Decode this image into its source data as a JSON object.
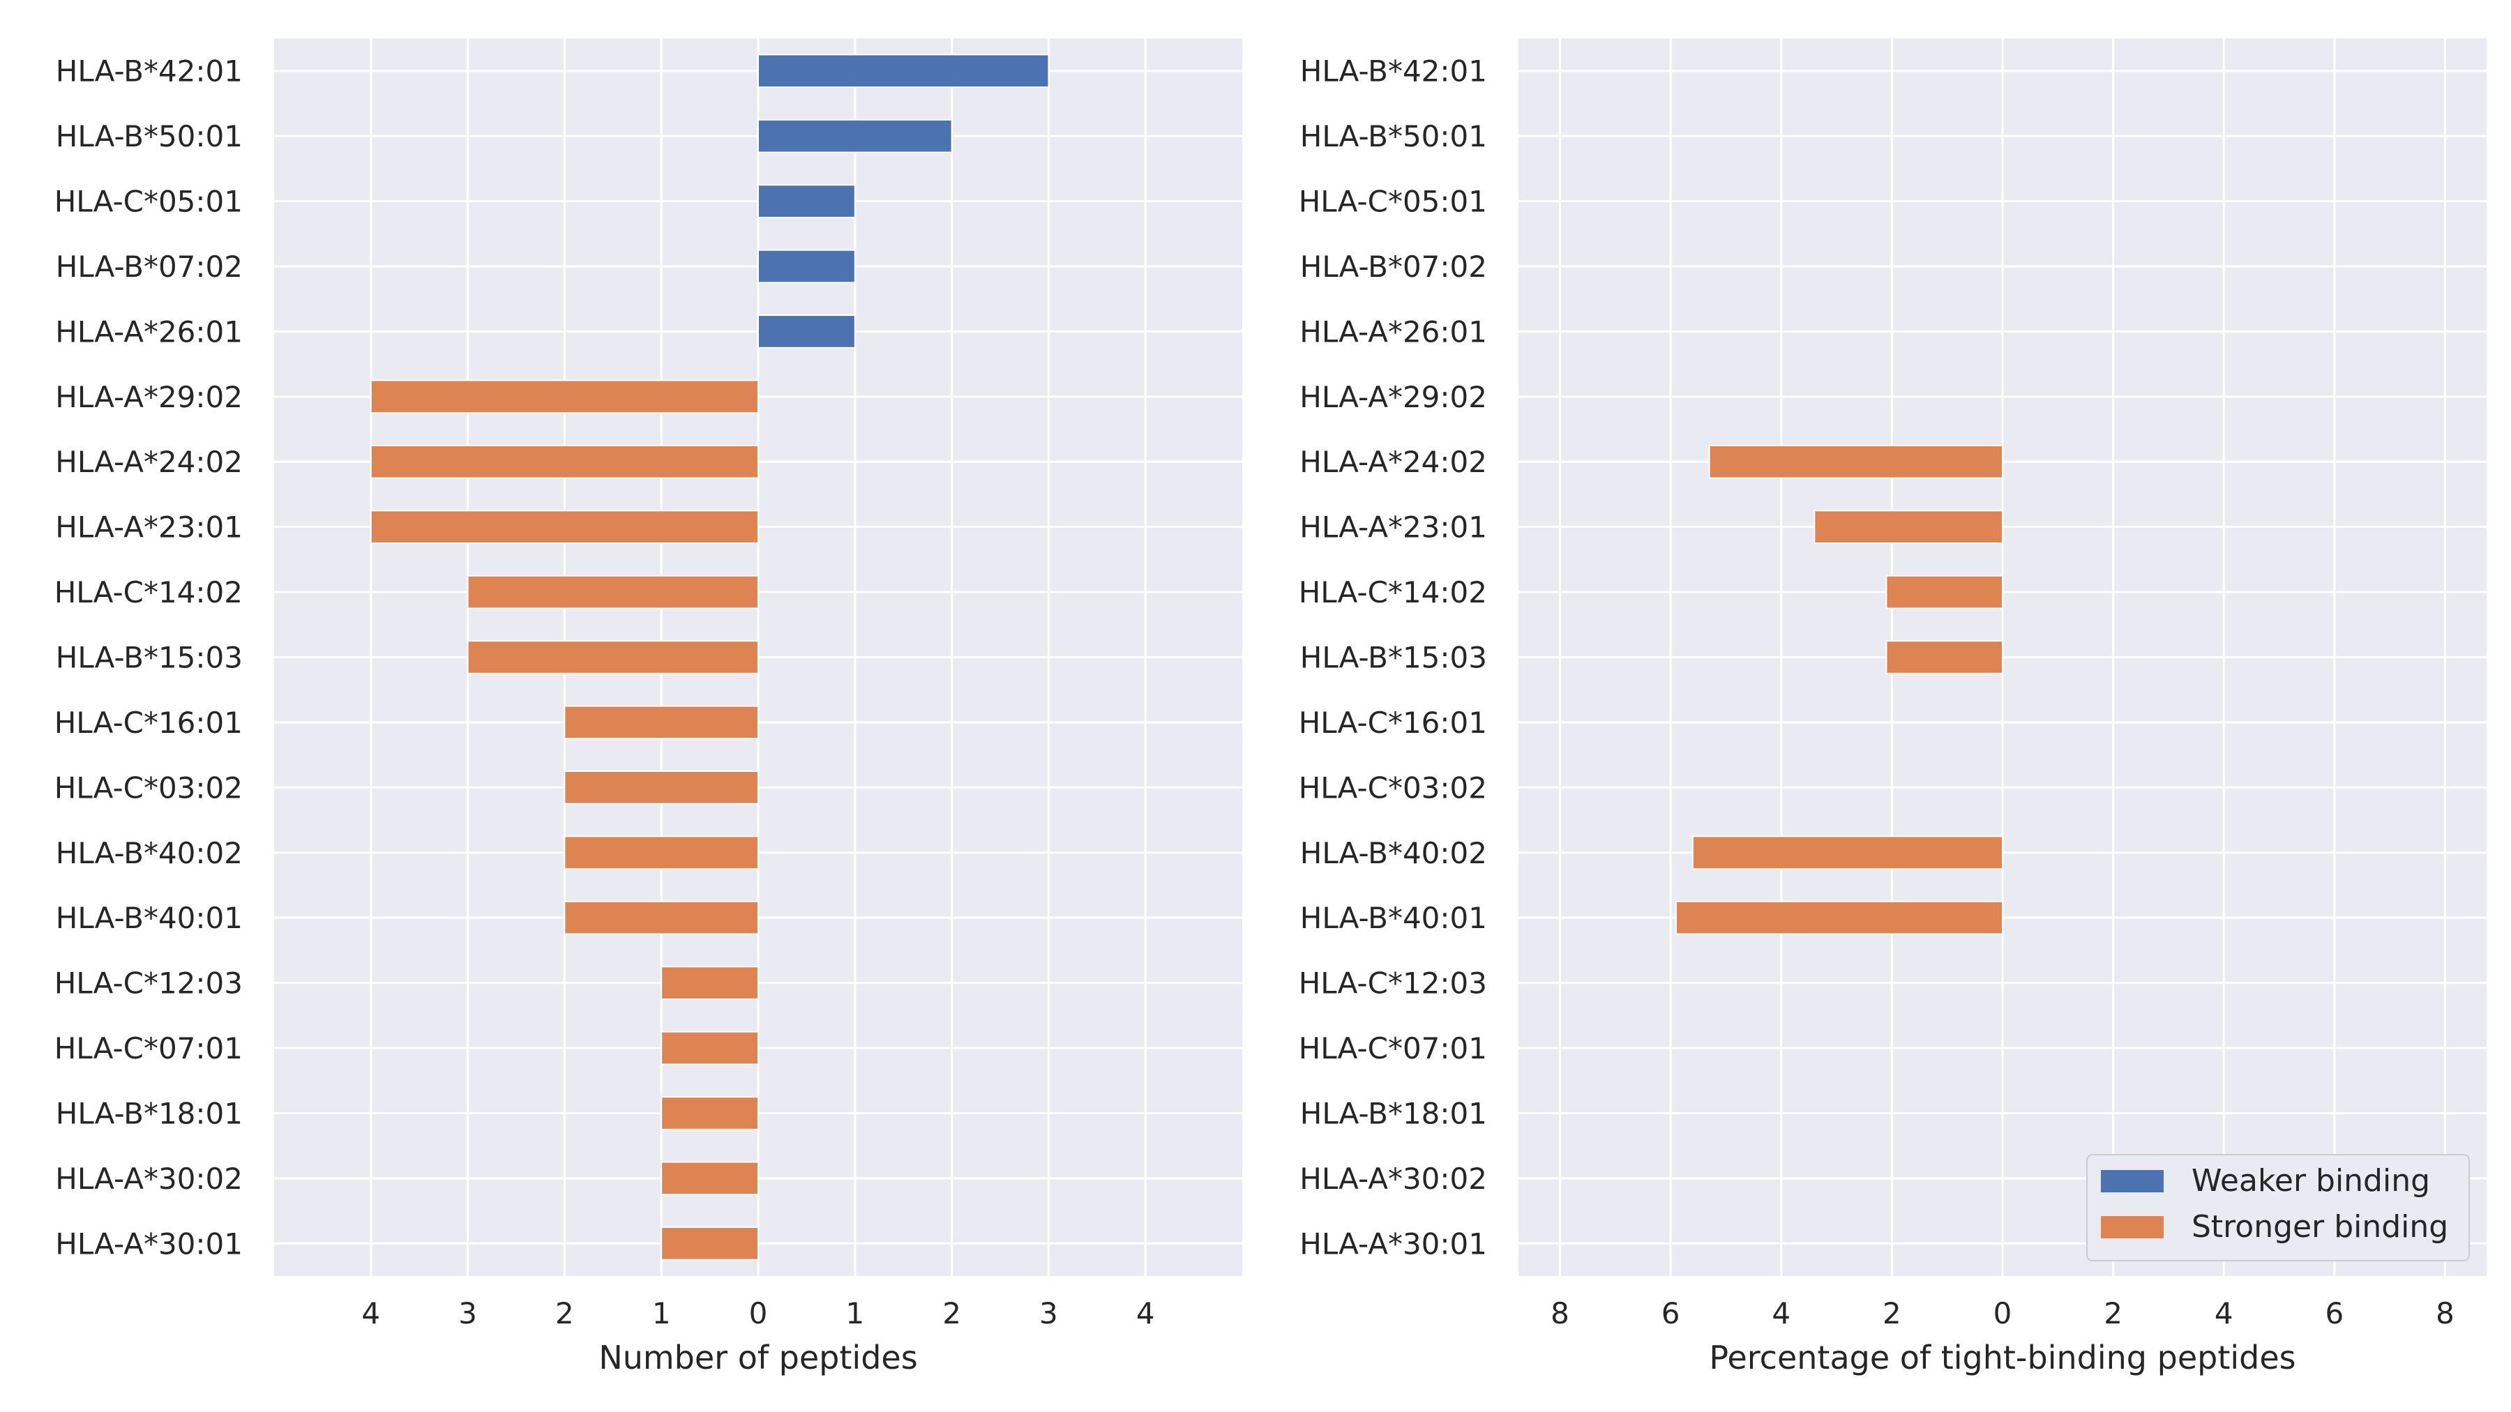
{
  "chart_data": [
    {
      "type": "bar",
      "orientation": "horizontal",
      "categories": [
        "HLA-B*42:01",
        "HLA-B*50:01",
        "HLA-C*05:01",
        "HLA-B*07:02",
        "HLA-A*26:01",
        "HLA-A*29:02",
        "HLA-A*24:02",
        "HLA-A*23:01",
        "HLA-C*14:02",
        "HLA-B*15:03",
        "HLA-C*16:01",
        "HLA-C*03:02",
        "HLA-B*40:02",
        "HLA-B*40:01",
        "HLA-C*12:03",
        "HLA-C*07:01",
        "HLA-B*18:01",
        "HLA-A*30:02",
        "HLA-A*30:01"
      ],
      "series": [
        {
          "name": "Weaker binding",
          "color": "#4c72b0",
          "values": [
            3,
            2,
            1,
            1,
            1,
            0,
            0,
            0,
            0,
            0,
            0,
            0,
            0,
            0,
            0,
            0,
            0,
            0,
            0
          ]
        },
        {
          "name": "Stronger binding",
          "color": "#dd8452",
          "values": [
            0,
            0,
            0,
            0,
            0,
            4,
            4,
            4,
            3,
            3,
            2,
            2,
            2,
            2,
            1,
            1,
            1,
            1,
            1
          ]
        }
      ],
      "stronger_direction": "left",
      "xlabel": "Number of peptides",
      "xlim": [
        -5,
        5
      ],
      "xticks": [
        -4,
        -3,
        -2,
        -1,
        0,
        1,
        2,
        3,
        4
      ],
      "xtick_labels": [
        "4",
        "3",
        "2",
        "1",
        "0",
        "1",
        "2",
        "3",
        "4"
      ],
      "grid": true,
      "background": "#eaeaf2"
    },
    {
      "type": "bar",
      "orientation": "horizontal",
      "categories": [
        "HLA-B*42:01",
        "HLA-B*50:01",
        "HLA-C*05:01",
        "HLA-B*07:02",
        "HLA-A*26:01",
        "HLA-A*29:02",
        "HLA-A*24:02",
        "HLA-A*23:01",
        "HLA-C*14:02",
        "HLA-B*15:03",
        "HLA-C*16:01",
        "HLA-C*03:02",
        "HLA-B*40:02",
        "HLA-B*40:01",
        "HLA-C*12:03",
        "HLA-C*07:01",
        "HLA-B*18:01",
        "HLA-A*30:02",
        "HLA-A*30:01"
      ],
      "series": [
        {
          "name": "Weaker binding",
          "color": "#4c72b0",
          "values": [
            0,
            0,
            0,
            0,
            0,
            0,
            0,
            0,
            0,
            0,
            0,
            0,
            0,
            0,
            0,
            0,
            0,
            0,
            0
          ]
        },
        {
          "name": "Stronger binding",
          "color": "#dd8452",
          "values": [
            0,
            0,
            0,
            0,
            0,
            0,
            5.3,
            3.4,
            2.1,
            2.1,
            0,
            0,
            5.6,
            5.9,
            0,
            0,
            0,
            0,
            0
          ]
        }
      ],
      "stronger_direction": "left",
      "xlabel": "Percentage of tight-binding peptides",
      "xlim": [
        -8.75,
        8.75
      ],
      "xticks": [
        -8,
        -6,
        -4,
        -2,
        0,
        2,
        4,
        6,
        8
      ],
      "xtick_labels": [
        "8",
        "6",
        "4",
        "2",
        "0",
        "2",
        "4",
        "6",
        "8"
      ],
      "grid": true,
      "background": "#eaeaf2",
      "legend": {
        "position": "lower-right",
        "entries": [
          "Weaker binding",
          "Stronger binding"
        ]
      }
    }
  ]
}
